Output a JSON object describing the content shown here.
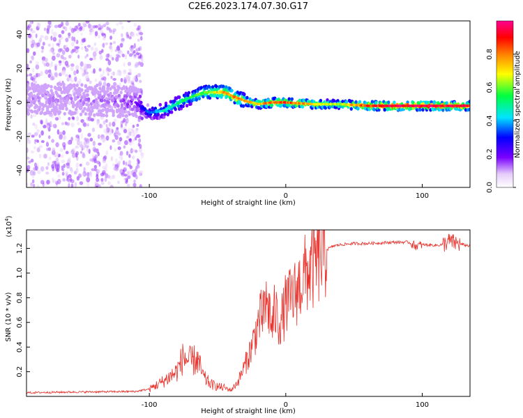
{
  "title": "C2E6.2023.174.07.30.G17",
  "colors": {
    "snr_line": "#e8302a",
    "colorbar": [
      "#ffffff",
      "#e6cdfa",
      "#7a00ff",
      "#0000ff",
      "#00e5ff",
      "#00ff40",
      "#ffff00",
      "#ff8000",
      "#ff0000",
      "#ff0090"
    ]
  },
  "chart_data": [
    {
      "type": "heatmap",
      "xlabel": "Height of straight line (km)",
      "ylabel": "Frequency (Hz)",
      "xlim": [
        -190,
        135
      ],
      "ylim": [
        -50,
        48
      ],
      "x_ticks": [
        -100,
        0,
        100
      ],
      "y_ticks": [
        40,
        20,
        0,
        -20,
        -40
      ],
      "colorbar": {
        "label": "Normalized spectral amplitude",
        "range": [
          0,
          1
        ],
        "ticks": [
          "0.0",
          "0.2",
          "0.4",
          "0.6",
          "0.8"
        ]
      },
      "ridge": {
        "x": [
          -190,
          -160,
          -130,
          -110,
          -100,
          -90,
          -80,
          -70,
          -60,
          -50,
          -45,
          -40,
          -30,
          -20,
          -10,
          0,
          20,
          40,
          60,
          80,
          100,
          120,
          135
        ],
        "y": [
          2,
          2,
          1,
          0,
          -6,
          -5,
          -1,
          3,
          6,
          6,
          6,
          4,
          1,
          -1,
          0,
          0,
          -1,
          -1,
          -2,
          -2,
          -2,
          -2,
          -2
        ],
        "amplitude": [
          0.12,
          0.12,
          0.14,
          0.18,
          0.35,
          0.45,
          0.5,
          0.55,
          0.6,
          0.7,
          0.8,
          0.78,
          0.75,
          0.7,
          0.82,
          0.85,
          0.7,
          0.65,
          0.85,
          0.95,
          0.95,
          0.9,
          0.92
        ]
      }
    },
    {
      "type": "line",
      "xlabel": "Height of straight line (km)",
      "ylabel": "SNR (10 * v/v)",
      "y_multiplier": "(x10",
      "y_multiplier_exp": "4",
      "y_multiplier_close": ")",
      "xlim": [
        -190,
        135
      ],
      "ylim": [
        0,
        13500
      ],
      "x_ticks": [
        -100,
        0,
        100
      ],
      "y_ticks": [
        "0.2",
        "0.4",
        "0.6",
        "0.8",
        "1.0",
        "1.2"
      ],
      "series": [
        {
          "x": [
            -190,
            -160,
            -130,
            -110,
            -100,
            -90,
            -80,
            -75,
            -70,
            -65,
            -60,
            -55,
            -50,
            -45,
            -40,
            -35,
            -30,
            -25,
            -20,
            -18,
            -15,
            -12,
            -10,
            -8,
            -5,
            -2,
            0,
            5,
            10,
            15,
            20,
            25,
            30,
            35,
            40,
            50,
            60,
            70,
            80,
            90,
            95,
            100,
            110,
            115,
            120,
            125,
            130,
            135
          ],
          "y": [
            300,
            350,
            380,
            400,
            600,
            1200,
            2000,
            3200,
            2800,
            3000,
            1500,
            1000,
            800,
            700,
            500,
            1200,
            2500,
            4000,
            6000,
            6500,
            7500,
            7000,
            5500,
            7000,
            6000,
            6500,
            7500,
            8000,
            9000,
            10000,
            10500,
            11300,
            11900,
            12200,
            12300,
            12400,
            12400,
            12450,
            12500,
            12500,
            12200,
            12300,
            12250,
            12300,
            12600,
            12400,
            12300,
            12200
          ]
        }
      ]
    }
  ]
}
